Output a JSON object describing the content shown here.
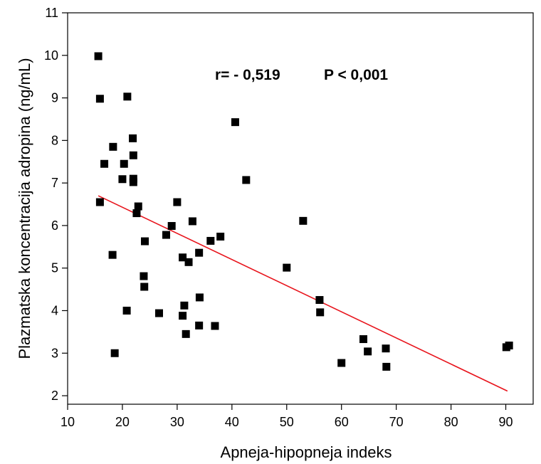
{
  "chart_data": {
    "type": "scatter",
    "title": "",
    "xlabel": "Apneja-hipopneja indeks",
    "ylabel": "Plazmatska koncentracija adropina (ng/mL)",
    "xlim": [
      10,
      95
    ],
    "ylim": [
      1.8,
      11
    ],
    "xticks": [
      10,
      20,
      30,
      40,
      50,
      60,
      70,
      80,
      90
    ],
    "yticks": [
      2,
      3,
      4,
      5,
      6,
      7,
      8,
      9,
      10,
      11
    ],
    "xtick_labels": [
      "10",
      "20",
      "30",
      "40",
      "50",
      "60",
      "70",
      "80",
      "90"
    ],
    "ytick_labels": [
      "2",
      "3",
      "4",
      "5",
      "6",
      "7",
      "8",
      "9",
      "10",
      "11"
    ],
    "annotation_r": "r= - 0,519",
    "annotation_p": "P < 0,001",
    "marker_color": "#000000",
    "line_color": "#e8141c",
    "points": [
      {
        "x": 15.6,
        "y": 9.98
      },
      {
        "x": 15.9,
        "y": 8.98
      },
      {
        "x": 20.9,
        "y": 9.03
      },
      {
        "x": 16.7,
        "y": 7.45
      },
      {
        "x": 18.3,
        "y": 7.85
      },
      {
        "x": 21.9,
        "y": 8.05
      },
      {
        "x": 20.0,
        "y": 7.09
      },
      {
        "x": 20.3,
        "y": 7.45
      },
      {
        "x": 22.0,
        "y": 7.65
      },
      {
        "x": 22.0,
        "y": 7.1
      },
      {
        "x": 22.0,
        "y": 7.02
      },
      {
        "x": 15.9,
        "y": 6.55
      },
      {
        "x": 22.9,
        "y": 6.45
      },
      {
        "x": 22.6,
        "y": 6.29
      },
      {
        "x": 18.2,
        "y": 5.31
      },
      {
        "x": 24.1,
        "y": 5.63
      },
      {
        "x": 23.9,
        "y": 4.81
      },
      {
        "x": 24.0,
        "y": 4.56
      },
      {
        "x": 20.8,
        "y": 4.0
      },
      {
        "x": 18.6,
        "y": 3.0
      },
      {
        "x": 26.7,
        "y": 3.94
      },
      {
        "x": 28.0,
        "y": 5.78
      },
      {
        "x": 29.0,
        "y": 5.99
      },
      {
        "x": 30.0,
        "y": 6.55
      },
      {
        "x": 31.0,
        "y": 5.25
      },
      {
        "x": 32.1,
        "y": 5.14
      },
      {
        "x": 32.8,
        "y": 6.1
      },
      {
        "x": 34.0,
        "y": 5.36
      },
      {
        "x": 34.1,
        "y": 4.31
      },
      {
        "x": 31.3,
        "y": 4.12
      },
      {
        "x": 31.0,
        "y": 3.88
      },
      {
        "x": 31.6,
        "y": 3.45
      },
      {
        "x": 34.0,
        "y": 3.65
      },
      {
        "x": 36.1,
        "y": 5.64
      },
      {
        "x": 37.9,
        "y": 5.74
      },
      {
        "x": 36.9,
        "y": 3.64
      },
      {
        "x": 40.6,
        "y": 8.43
      },
      {
        "x": 42.6,
        "y": 7.07
      },
      {
        "x": 50.0,
        "y": 5.01
      },
      {
        "x": 53.0,
        "y": 6.11
      },
      {
        "x": 56.0,
        "y": 4.25
      },
      {
        "x": 56.1,
        "y": 3.96
      },
      {
        "x": 60.0,
        "y": 2.77
      },
      {
        "x": 64.0,
        "y": 3.33
      },
      {
        "x": 64.8,
        "y": 3.04
      },
      {
        "x": 68.1,
        "y": 3.11
      },
      {
        "x": 68.2,
        "y": 2.68
      },
      {
        "x": 90.1,
        "y": 3.14
      },
      {
        "x": 90.6,
        "y": 3.18
      }
    ],
    "regression": {
      "x": [
        15.6,
        90.3
      ],
      "y": [
        6.7,
        2.11
      ]
    }
  }
}
